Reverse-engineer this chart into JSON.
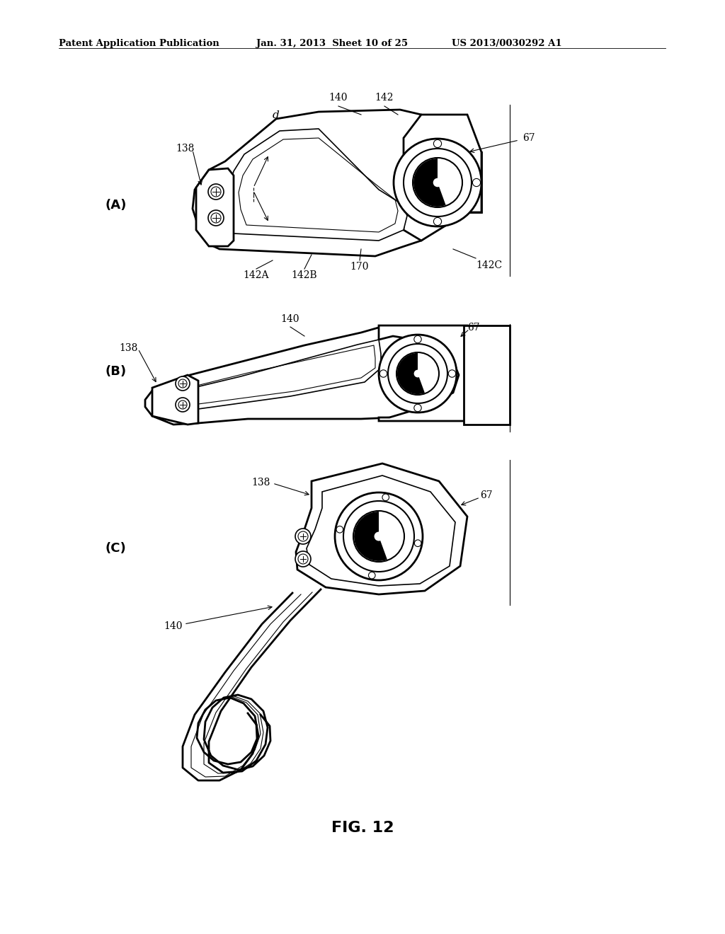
{
  "bg_color": "#ffffff",
  "header_left": "Patent Application Publication",
  "header_mid": "Jan. 31, 2013  Sheet 10 of 25",
  "header_right": "US 2013/0030292 A1",
  "fig_label": "FIG. 12"
}
